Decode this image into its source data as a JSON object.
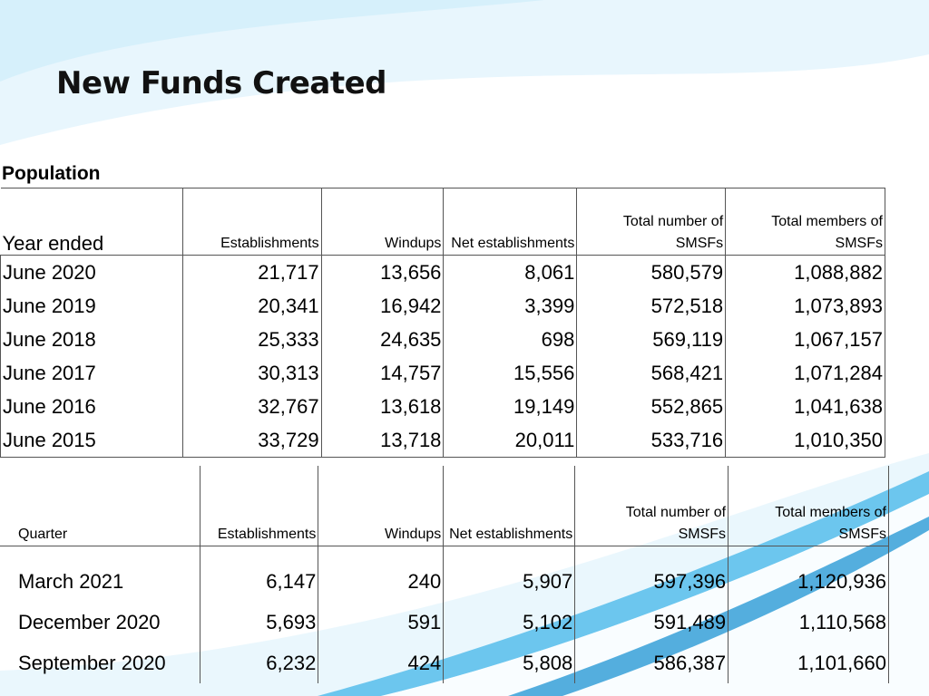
{
  "slide": {
    "title": "New Funds Created"
  },
  "population": {
    "section_label": "Population",
    "headers": [
      "Year ended",
      "Establishments",
      "Windups",
      "Net establishments",
      "Total number of SMSFs",
      "Total members of SMSFs"
    ],
    "rows": [
      [
        "June 2020",
        "21,717",
        "13,656",
        "8,061",
        "580,579",
        "1,088,882"
      ],
      [
        "June 2019",
        "20,341",
        "16,942",
        "3,399",
        "572,518",
        "1,073,893"
      ],
      [
        "June 2018",
        "25,333",
        "24,635",
        "698",
        "569,119",
        "1,067,157"
      ],
      [
        "June 2017",
        "30,313",
        "14,757",
        "15,556",
        "568,421",
        "1,071,284"
      ],
      [
        "June 2016",
        "32,767",
        "13,618",
        "19,149",
        "552,865",
        "1,041,638"
      ],
      [
        "June 2015",
        "33,729",
        "13,718",
        "20,011",
        "533,716",
        "1,010,350"
      ]
    ]
  },
  "quarterly": {
    "headers": [
      "Quarter",
      "Establishments",
      "Windups",
      "Net establishments",
      "Total number of SMSFs",
      "Total members of SMSFs"
    ],
    "rows": [
      [
        "March 2021",
        "6,147",
        "240",
        "5,907",
        "597,396",
        "1,120,936"
      ],
      [
        "December 2020",
        "5,693",
        "591",
        "5,102",
        "591,489",
        "1,110,568"
      ],
      [
        "September 2020",
        "6,232",
        "424",
        "5,808",
        "586,387",
        "1,101,660"
      ]
    ]
  },
  "colors": {
    "swoosh_light": "#d6f0fb",
    "swoosh_mid": "#4fb8e8",
    "swoosh_dark": "#1f8fd0"
  }
}
